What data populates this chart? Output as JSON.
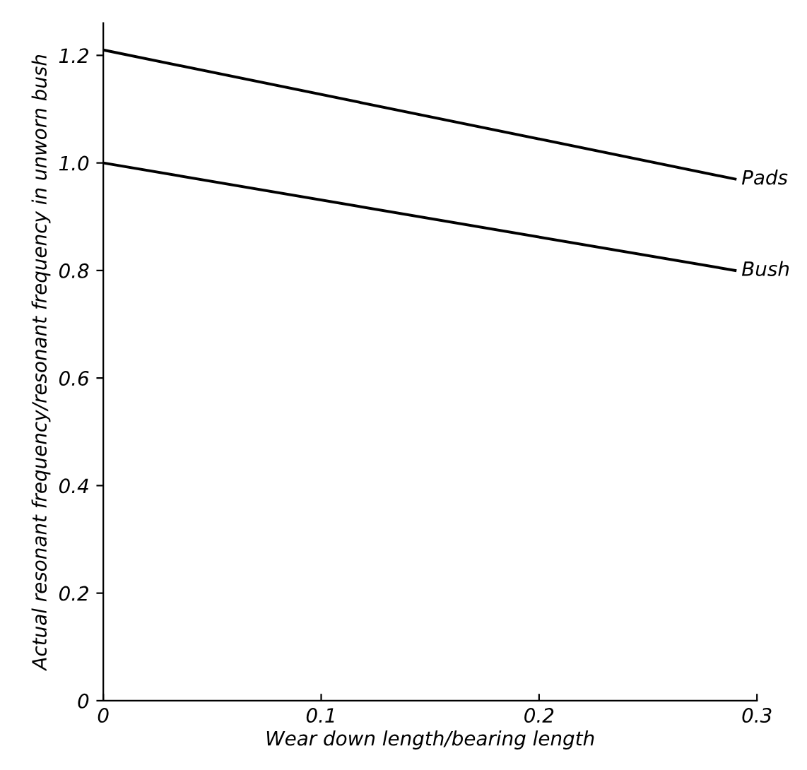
{
  "chart_data": {
    "type": "line",
    "xlabel": "Wear down length/bearing length",
    "ylabel": "Actual resonant frequency/resonant frequency in unworn bush",
    "x": [
      0,
      0.29
    ],
    "series": [
      {
        "name": "Pads",
        "color": "#000000",
        "values": [
          1.21,
          0.97
        ]
      },
      {
        "name": "Bush",
        "color": "#000000",
        "values": [
          1.0,
          0.8
        ]
      }
    ],
    "xlim": [
      0,
      0.3
    ],
    "ylim": [
      0,
      1.26
    ],
    "xticks": [
      0,
      0.1,
      0.2,
      0.3
    ],
    "yticks": [
      0,
      0.2,
      0.4,
      0.6,
      0.8,
      {
        "value": 1,
        "label": "1.0"
      },
      1.2
    ],
    "grid": false,
    "legend": false,
    "marker": "none",
    "line_style": "solid"
  }
}
